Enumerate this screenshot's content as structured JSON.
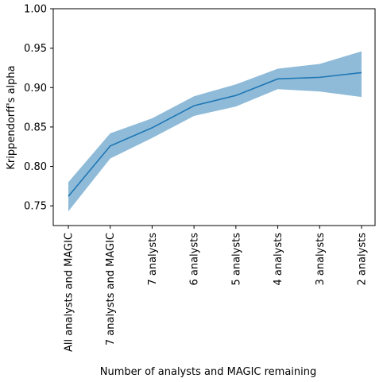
{
  "chart_data": {
    "type": "line",
    "title": "",
    "xlabel": "Number of analysts and MAGIC remaining",
    "ylabel": "Krippendorff's alpha",
    "categories": [
      "All analysts and MAGIC",
      "7 analysts and MAGIC",
      "7 analysts",
      "6 analysts",
      "5 analysts",
      "4 analysts",
      "3 analysts",
      "2 analysts"
    ],
    "series": [
      {
        "values": [
          0.762,
          0.826,
          0.849,
          0.877,
          0.89,
          0.911,
          0.913,
          0.919
        ],
        "lower": [
          0.743,
          0.81,
          0.836,
          0.864,
          0.876,
          0.898,
          0.895,
          0.888
        ],
        "upper": [
          0.78,
          0.842,
          0.861,
          0.889,
          0.904,
          0.924,
          0.93,
          0.946
        ],
        "color": "#1f77b4",
        "band_color": "#1f77b4"
      }
    ],
    "ylim": [
      0.725,
      1.0
    ],
    "yticks": [
      "0.75",
      "0.80",
      "0.85",
      "0.90",
      "0.95",
      "1.00"
    ],
    "ytick_values": [
      0.75,
      0.8,
      0.85,
      0.9,
      0.95,
      1.0
    ],
    "grid": false,
    "legend": "none"
  }
}
